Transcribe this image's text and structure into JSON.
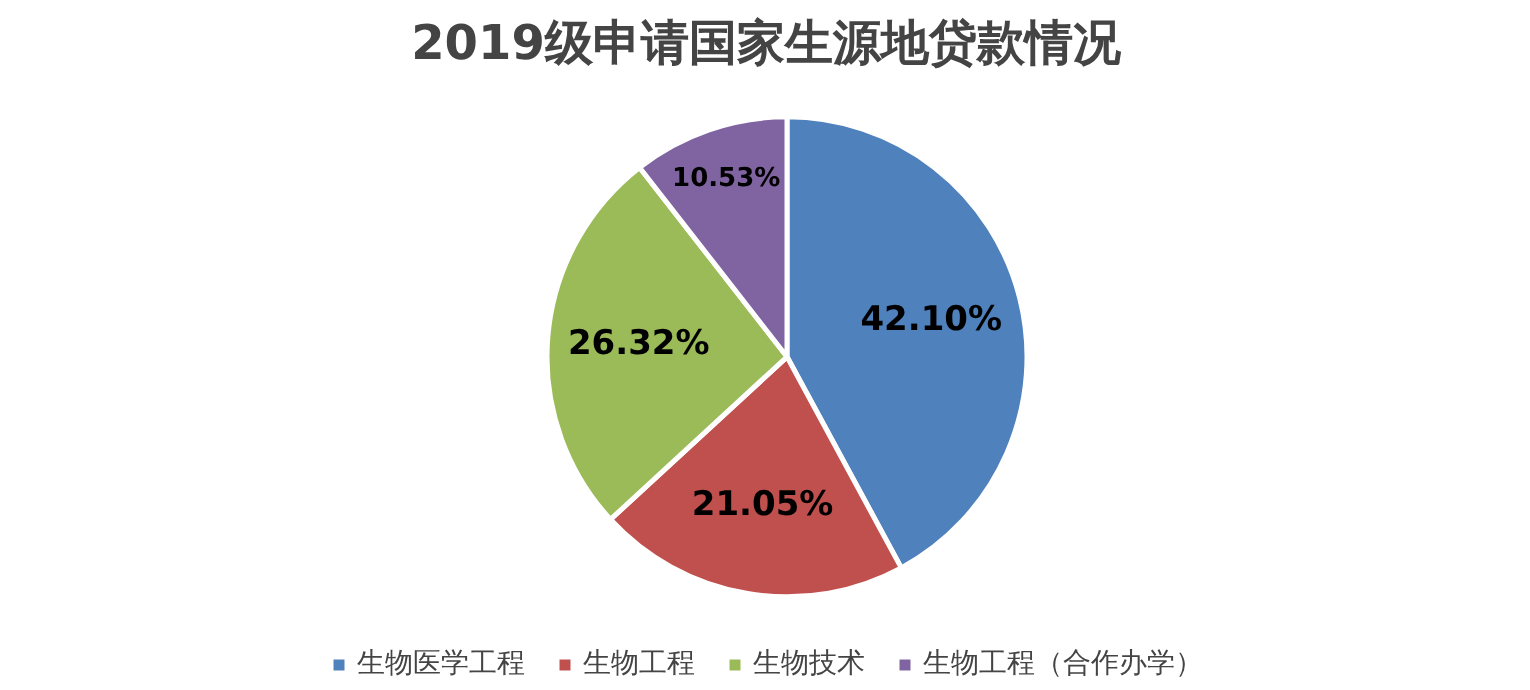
{
  "chart_data": {
    "type": "pie",
    "title": "2019级申请国家生源地贷款情况",
    "categories": [
      "生物医学工程",
      "生物工程",
      "生物技术",
      "生物工程（合作办学）"
    ],
    "values": [
      42.1,
      21.05,
      26.32,
      10.53
    ],
    "colors": [
      "#4f81bd",
      "#c0504d",
      "#9bbb59",
      "#8064a2"
    ],
    "value_labels": [
      "42.10%",
      "21.05%",
      "26.32%",
      "10.53%"
    ],
    "legend": "bottom"
  }
}
